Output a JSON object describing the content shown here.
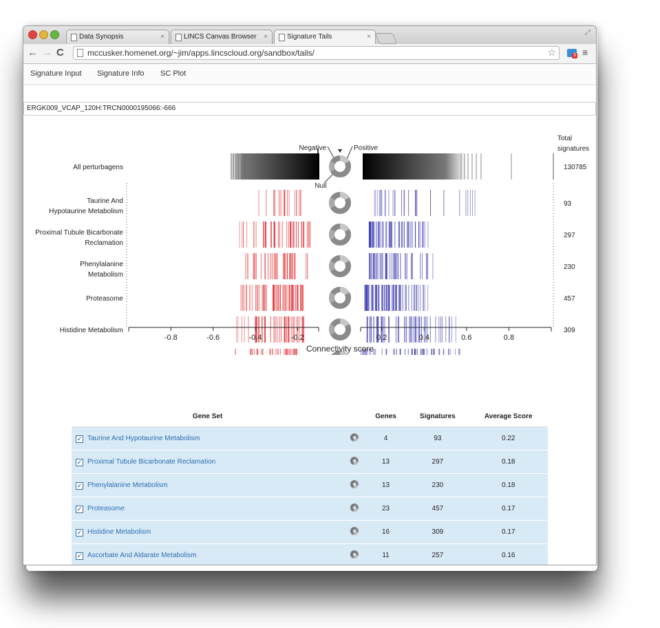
{
  "browser": {
    "tabs": [
      {
        "label": "Data Synopsis"
      },
      {
        "label": "LINCS Canvas Browser"
      },
      {
        "label": "Signature Tails"
      }
    ],
    "url": "mccusker.homenet.org/~jim/apps.lincscloud.org/sandbox/tails/",
    "extension_badge": "3"
  },
  "app_nav": [
    "Signature Input",
    "Signature Info",
    "SC Plot"
  ],
  "signature_id": "ERGK009_VCAP_120H:TRCN0000195066:-666",
  "plot": {
    "header_total": "Total signatures",
    "ring_labels": {
      "negative": "Negative",
      "positive": "Positive",
      "null": "Null"
    },
    "xlabel": "Connectivity score",
    "rows": [
      {
        "label": "All perturbagens",
        "total": "130785"
      },
      {
        "label": "Taurine And Hypotaurine Metabolism",
        "total": "93"
      },
      {
        "label": "Proximal Tubule Bicarbonate Reclamation",
        "total": "297"
      },
      {
        "label": "Phenylalanine Metabolism",
        "total": "230"
      },
      {
        "label": "Proteasome",
        "total": "457"
      },
      {
        "label": "Histidine Metabolism",
        "total": "309"
      },
      {
        "label": "Ascorbate And Aldarate Metabolism",
        "total": "257"
      }
    ]
  },
  "chart_data": {
    "type": "scatter",
    "xlabel": "Connectivity score",
    "neg_ticks": [
      "-0.8",
      "-0.6",
      "-0.4",
      "-0.2"
    ],
    "pos_ticks": [
      "0.2",
      "0.4",
      "0.6",
      "0.8"
    ],
    "xlim": [
      -1,
      1
    ],
    "series": [
      {
        "name": "Taurine And Hypotaurine Metabolism",
        "neg_range": [
          -0.43,
          -0.18
        ],
        "pos_range": [
          0.16,
          0.65
        ]
      },
      {
        "name": "Proximal Tubule Bicarbonate Reclamation",
        "neg_range": [
          -0.48,
          -0.14
        ],
        "pos_range": [
          0.14,
          0.45
        ]
      },
      {
        "name": "Phenylalanine Metabolism",
        "neg_range": [
          -0.45,
          -0.15
        ],
        "pos_range": [
          0.14,
          0.46
        ]
      },
      {
        "name": "Proteasome",
        "neg_range": [
          -0.48,
          -0.17
        ],
        "pos_range": [
          0.12,
          0.42
        ]
      },
      {
        "name": "Histidine Metabolism",
        "neg_range": [
          -0.5,
          -0.17
        ],
        "pos_range": [
          0.13,
          0.55
        ]
      },
      {
        "name": "Ascorbate And Aldarate Metabolism",
        "neg_range": [
          -0.5,
          -0.2
        ],
        "pos_range": [
          0.1,
          0.58
        ]
      }
    ]
  },
  "table": {
    "headers": [
      "Gene Set",
      "",
      "Genes",
      "Signatures",
      "Average Score"
    ],
    "rows": [
      {
        "name": "Taurine And Hypotaurine Metabolism",
        "genes": "4",
        "signatures": "93",
        "avg": "0.22"
      },
      {
        "name": "Proximal Tubule Bicarbonate Reclamation",
        "genes": "13",
        "signatures": "297",
        "avg": "0.18"
      },
      {
        "name": "Phenylalanine Metabolism",
        "genes": "13",
        "signatures": "230",
        "avg": "0.18"
      },
      {
        "name": "Proteasome",
        "genes": "23",
        "signatures": "457",
        "avg": "0.17"
      },
      {
        "name": "Histidine Metabolism",
        "genes": "16",
        "signatures": "309",
        "avg": "0.17"
      },
      {
        "name": "Ascorbate And Aldarate Metabolism",
        "genes": "11",
        "signatures": "257",
        "avg": "0.16"
      }
    ]
  },
  "colors": {
    "negative": "#e0262a",
    "positive": "#2a2aa8",
    "row_bg": "#d9eaf7",
    "link": "#2b6fb0"
  }
}
